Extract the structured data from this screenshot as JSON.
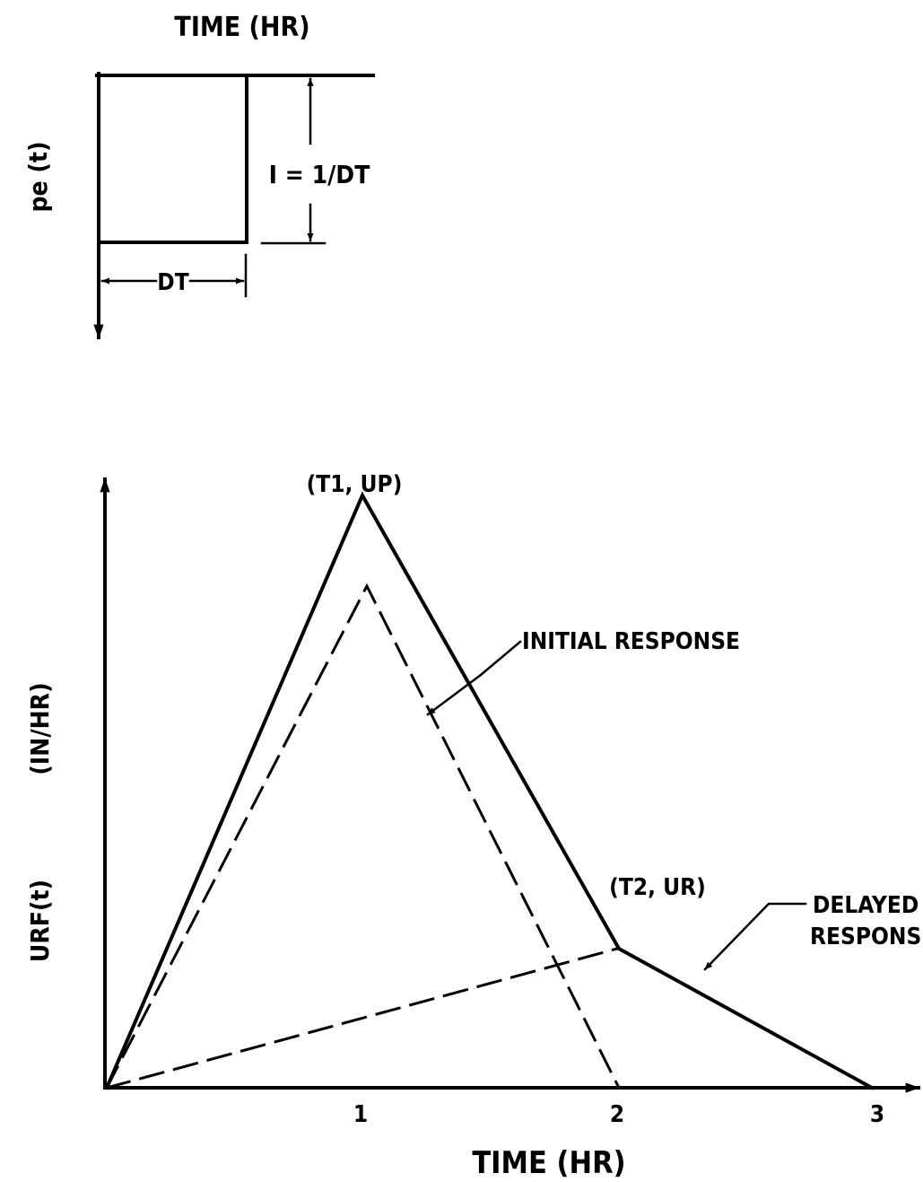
{
  "top_panel": {
    "time_label": "TIME (HR)",
    "y_label": "pe (t)",
    "intensity_label": "I = 1/DT",
    "duration_label": "DT"
  },
  "bottom_panel": {
    "y_label_a": "URF(t)",
    "y_label_b": "(IN/HR)",
    "x_label": "TIME (HR)",
    "x_ticks": [
      "1",
      "2",
      "3"
    ],
    "peak_label": "(T1, UP)",
    "break_label": "(T2, UR)",
    "initial_label": "INITIAL RESPONSE",
    "delayed_label_1": "DELAYED",
    "delayed_label_2": "RESPONSE"
  }
}
